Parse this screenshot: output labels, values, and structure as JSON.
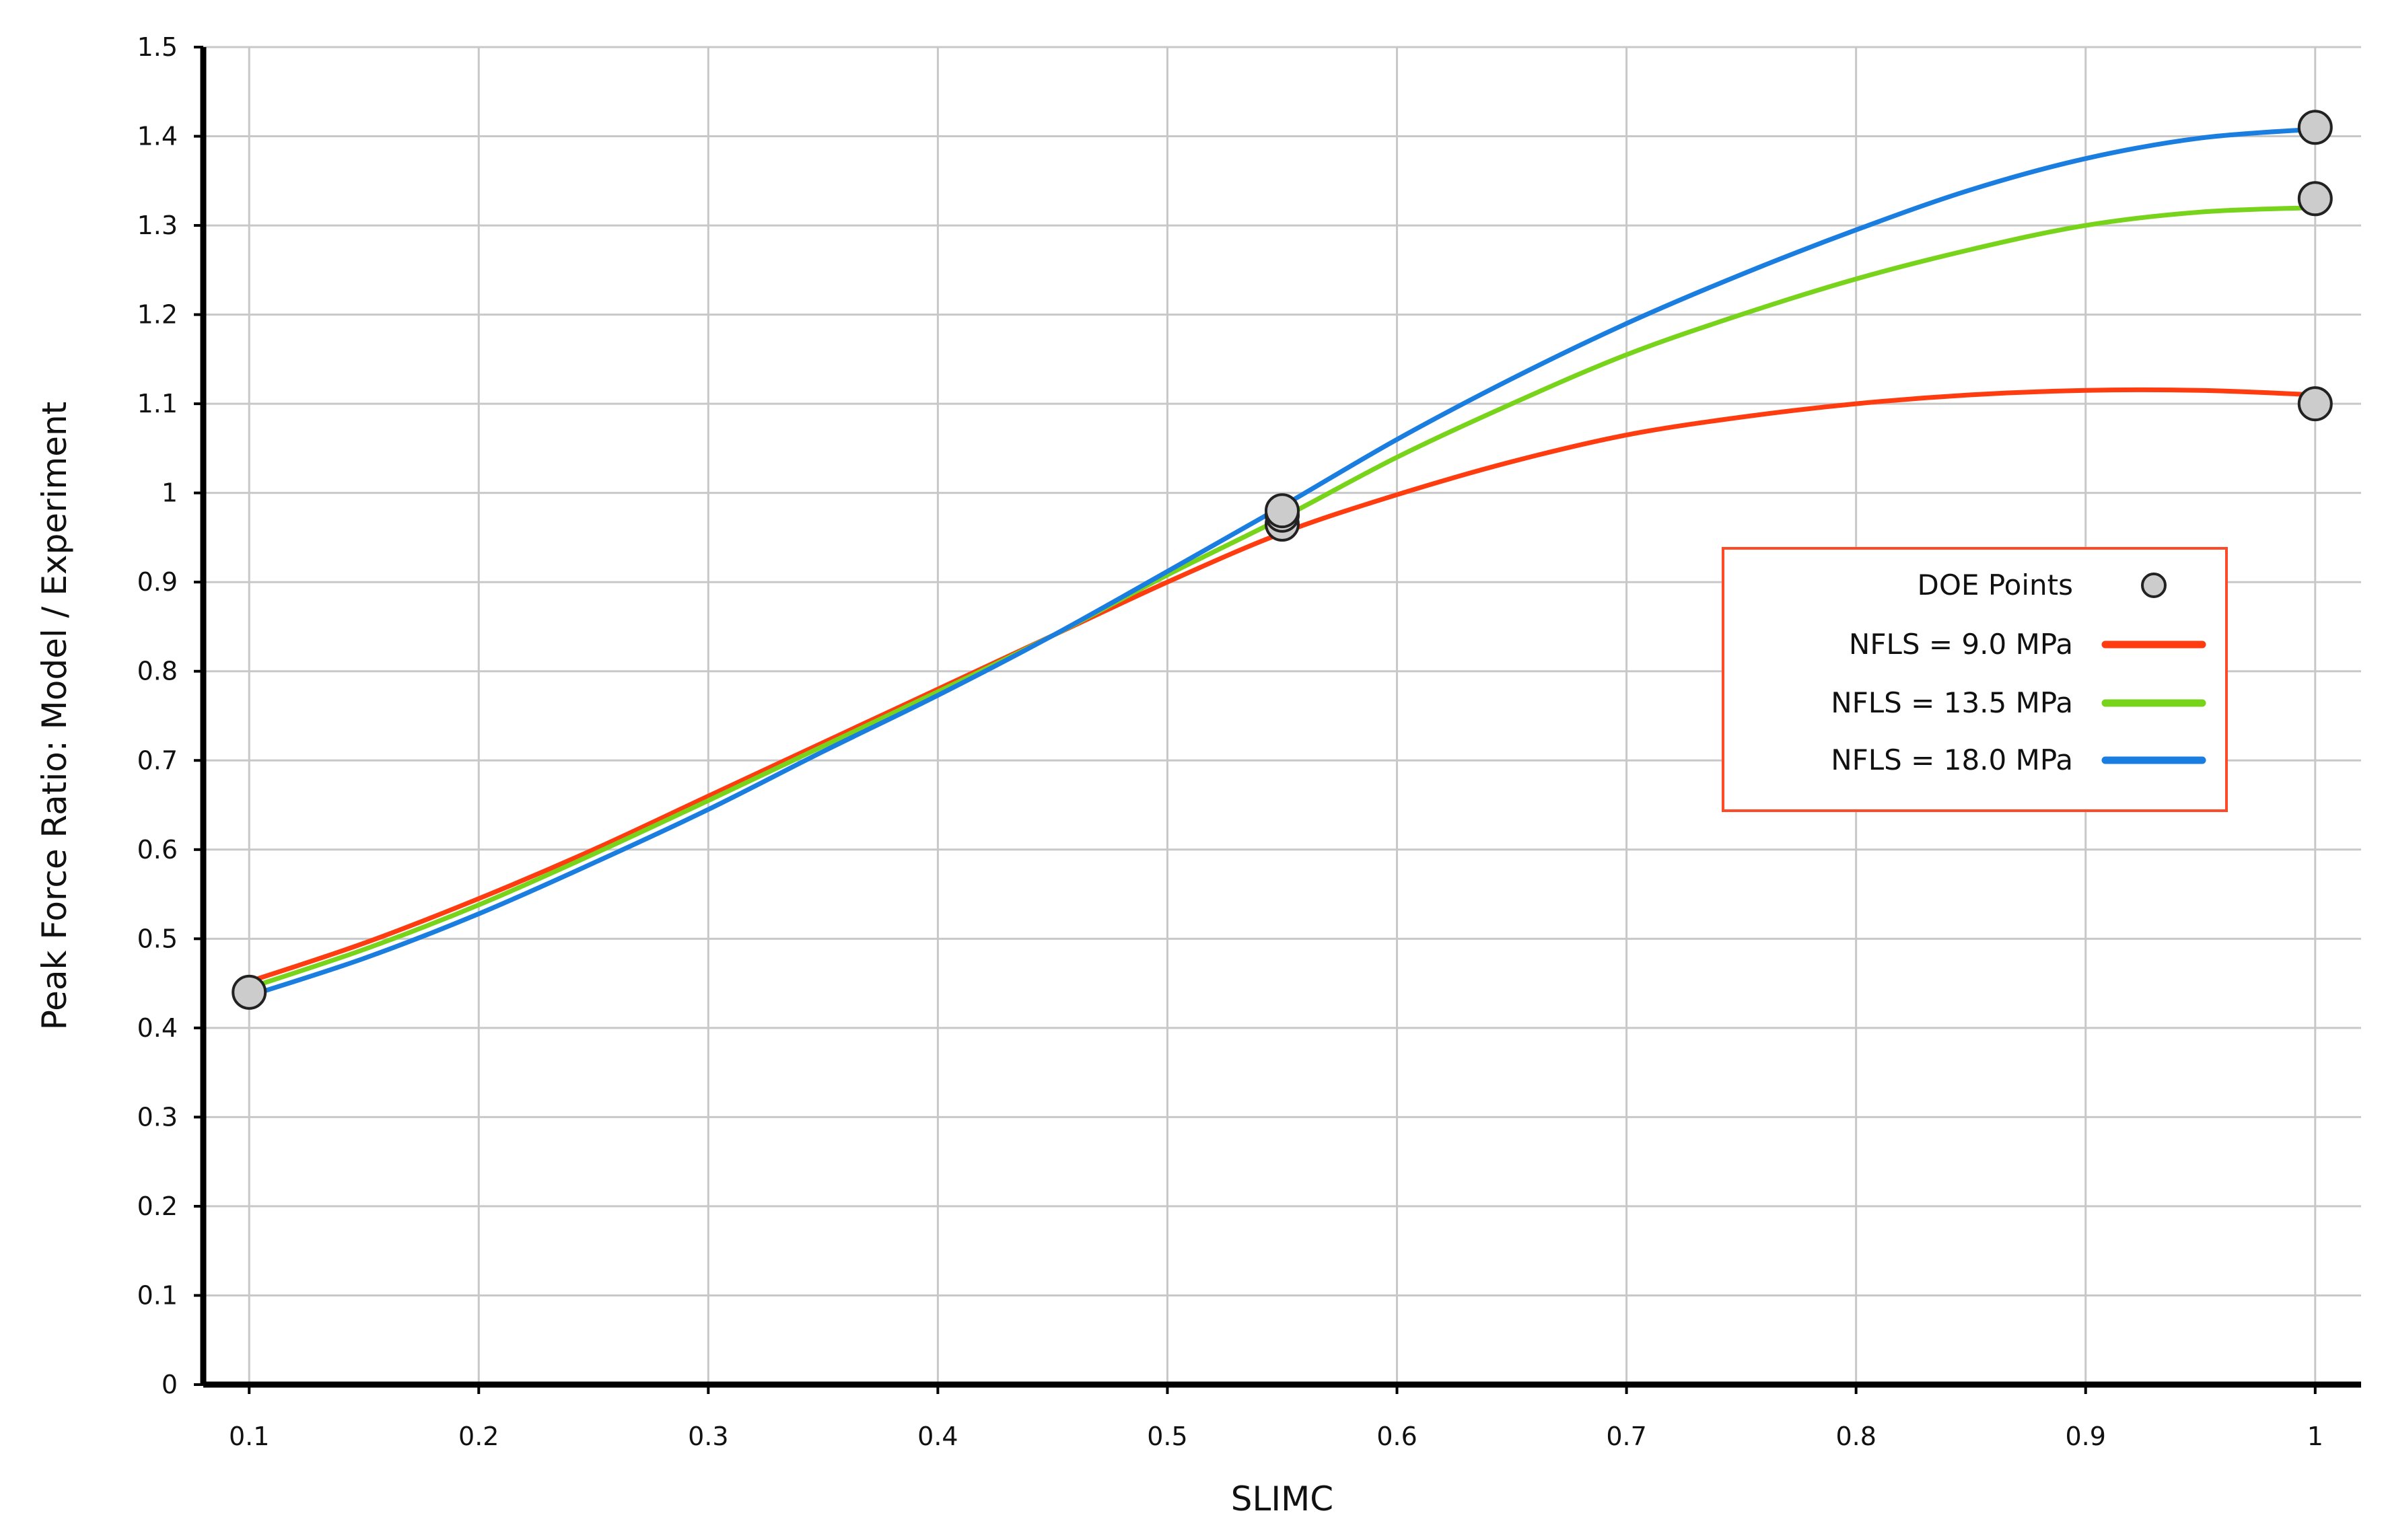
{
  "chart_data": {
    "type": "line",
    "xlabel": "SLIMC",
    "ylabel": "Peak Force Ratio: Model / Experiment",
    "xlim": [
      0.08,
      1.02
    ],
    "ylim": [
      0,
      1.5
    ],
    "xticks": [
      "0.1",
      "0.2",
      "0.3",
      "0.4",
      "0.5",
      "0.6",
      "0.7",
      "0.8",
      "0.9",
      "1"
    ],
    "yticks": [
      "0",
      "0.1",
      "0.2",
      "0.3",
      "0.4",
      "0.5",
      "0.6",
      "0.7",
      "0.8",
      "0.9",
      "1",
      "1.1",
      "1.2",
      "1.3",
      "1.4",
      "1.5"
    ],
    "grid": true,
    "legend_position": "right",
    "series": [
      {
        "name": "NFLS = 9.0 MPa",
        "color": "#ff3b10",
        "x": [
          0.1,
          0.15,
          0.2,
          0.25,
          0.3,
          0.35,
          0.4,
          0.45,
          0.5,
          0.55,
          0.6,
          0.65,
          0.7,
          0.75,
          0.8,
          0.85,
          0.9,
          0.95,
          1.0
        ],
        "y": [
          0.452,
          0.495,
          0.545,
          0.6,
          0.66,
          0.72,
          0.78,
          0.84,
          0.9,
          0.955,
          0.998,
          1.035,
          1.065,
          1.085,
          1.1,
          1.11,
          1.115,
          1.115,
          1.11
        ]
      },
      {
        "name": "NFLS = 13.5 MPa",
        "color": "#77d41a",
        "x": [
          0.1,
          0.15,
          0.2,
          0.25,
          0.3,
          0.35,
          0.4,
          0.45,
          0.5,
          0.55,
          0.6,
          0.65,
          0.7,
          0.75,
          0.8,
          0.85,
          0.9,
          0.95,
          1.0
        ],
        "y": [
          0.445,
          0.488,
          0.538,
          0.595,
          0.655,
          0.716,
          0.777,
          0.84,
          0.908,
          0.972,
          1.04,
          1.1,
          1.155,
          1.2,
          1.24,
          1.273,
          1.3,
          1.315,
          1.32
        ]
      },
      {
        "name": "NFLS = 18.0 MPa",
        "color": "#1a7de0",
        "x": [
          0.1,
          0.15,
          0.2,
          0.25,
          0.3,
          0.35,
          0.4,
          0.45,
          0.5,
          0.55,
          0.6,
          0.65,
          0.7,
          0.75,
          0.8,
          0.85,
          0.9,
          0.95,
          1.0
        ],
        "y": [
          0.436,
          0.478,
          0.528,
          0.585,
          0.645,
          0.71,
          0.773,
          0.84,
          0.912,
          0.985,
          1.06,
          1.128,
          1.19,
          1.245,
          1.295,
          1.34,
          1.375,
          1.398,
          1.408
        ]
      }
    ],
    "doe_points": {
      "name": "DOE Points",
      "color": "#cccccc",
      "points": [
        {
          "x": 0.1,
          "y": 0.44
        },
        {
          "x": 0.55,
          "y": 0.965
        },
        {
          "x": 0.55,
          "y": 0.975
        },
        {
          "x": 0.55,
          "y": 0.98
        },
        {
          "x": 1.0,
          "y": 1.1
        },
        {
          "x": 1.0,
          "y": 1.33
        },
        {
          "x": 1.0,
          "y": 1.41
        }
      ]
    }
  },
  "legend": {
    "border_color": "#ff4a2a",
    "items": [
      "DOE Points",
      "NFLS = 9.0 MPa",
      "NFLS = 13.5 MPa",
      "NFLS = 18.0 MPa"
    ]
  }
}
